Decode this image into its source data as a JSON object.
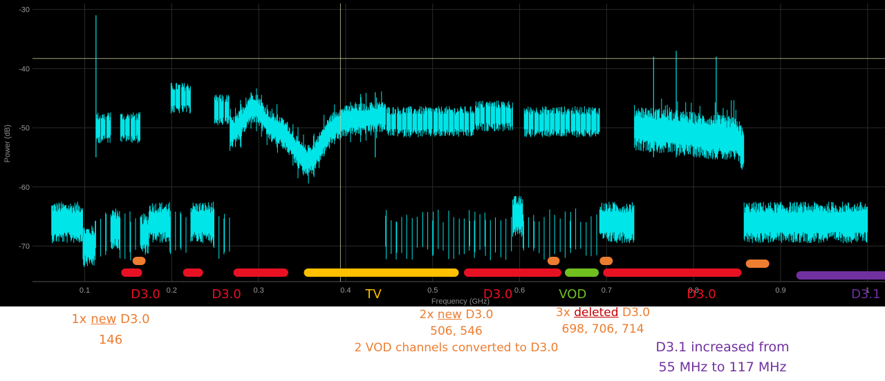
{
  "chart_data": {
    "type": "line",
    "title": "",
    "xlabel": "Frequency (GHz)",
    "ylabel": "Power (dB)",
    "xlim": [
      0.04,
      1.02
    ],
    "ylim": [
      -76,
      -29
    ],
    "grid": true,
    "x_ticks": [
      0.1,
      0.2,
      0.3,
      0.4,
      0.5,
      0.6,
      0.7,
      0.8,
      0.9,
      1
    ],
    "x_tick_labels": [
      "0.1",
      "0.2",
      "0.3",
      "0.4",
      "0.5",
      "0.6",
      "0.7",
      "0.8",
      "0.9",
      "1"
    ],
    "y_ticks": [
      -30,
      -40,
      -50,
      -60,
      -70
    ],
    "y_tick_labels": [
      "-30",
      "-40",
      "-50",
      "-60",
      "-70"
    ],
    "marker_frequency_ghz": 0.394,
    "marker_level_db": -38.3,
    "spectrum": {
      "noise_floor_db": -66,
      "segments": [
        {
          "x0": 0.062,
          "x1": 0.098,
          "level": -66,
          "kind": "floor"
        },
        {
          "x0": 0.098,
          "x1": 0.112,
          "level": -70,
          "kind": "floor"
        },
        {
          "x0": 0.112,
          "x1": 0.13,
          "level": -50,
          "kind": "carriers",
          "width": 0.006
        },
        {
          "x0": 0.13,
          "x1": 0.14,
          "level": -67,
          "kind": "floor"
        },
        {
          "x0": 0.14,
          "x1": 0.164,
          "level": -50,
          "kind": "carriers",
          "width": 0.006
        },
        {
          "x0": 0.164,
          "x1": 0.174,
          "level": -68,
          "kind": "floor"
        },
        {
          "x0": 0.174,
          "x1": 0.198,
          "level": -66,
          "kind": "floor"
        },
        {
          "x0": 0.198,
          "x1": 0.222,
          "level": -45,
          "kind": "carriers",
          "width": 0.006
        },
        {
          "x0": 0.222,
          "x1": 0.232,
          "level": -66,
          "kind": "floor"
        },
        {
          "x0": 0.232,
          "x1": 0.248,
          "level": -66,
          "kind": "floor"
        },
        {
          "x0": 0.248,
          "x1": 0.267,
          "level": -47,
          "kind": "carriers",
          "width": 0.006
        },
        {
          "x0": 0.267,
          "x1": 0.446,
          "level": -51,
          "kind": "tv",
          "width": 0.006
        },
        {
          "x0": 0.446,
          "x1": 0.548,
          "level": -49,
          "kind": "carriers",
          "width": 0.006
        },
        {
          "x0": 0.548,
          "x1": 0.592,
          "level": -48,
          "kind": "carriers",
          "width": 0.006
        },
        {
          "x0": 0.592,
          "x1": 0.604,
          "level": -65,
          "kind": "floor"
        },
        {
          "x0": 0.604,
          "x1": 0.692,
          "level": -49,
          "kind": "carriers",
          "width": 0.006
        },
        {
          "x0": 0.692,
          "x1": 0.732,
          "level": -66,
          "kind": "floor"
        },
        {
          "x0": 0.732,
          "x1": 0.85,
          "level": -50,
          "kind": "ofdm"
        },
        {
          "x0": 0.85,
          "x1": 0.858,
          "level": -52,
          "kind": "ofdm"
        },
        {
          "x0": 0.858,
          "x1": 1.0,
          "level": -66,
          "kind": "floor"
        }
      ],
      "spikes": [
        {
          "x": 0.113,
          "level": -31
        },
        {
          "x": 0.434,
          "level": -44
        },
        {
          "x": 0.754,
          "level": -38
        },
        {
          "x": 0.78,
          "level": -37
        },
        {
          "x": 0.826,
          "level": -38
        }
      ]
    },
    "bands": [
      {
        "label": "D3.0",
        "x0": 0.142,
        "x1": 0.166,
        "row": 1,
        "color": "#E81123"
      },
      {
        "label": "D3.0",
        "x0": 0.213,
        "x1": 0.236,
        "row": 1,
        "color": "#E81123"
      },
      {
        "label": "D3.0",
        "x0": 0.271,
        "x1": 0.334,
        "row": 1,
        "color": "#E81123"
      },
      {
        "label": "TV",
        "x0": 0.352,
        "x1": 0.53,
        "row": 1,
        "color": "#FFC000"
      },
      {
        "label": "D3.0",
        "x0": 0.536,
        "x1": 0.648,
        "row": 1,
        "color": "#E81123"
      },
      {
        "label": "VOD",
        "x0": 0.652,
        "x1": 0.691,
        "row": 1,
        "color": "#70C020"
      },
      {
        "label": "D3.0",
        "x0": 0.696,
        "x1": 0.855,
        "row": 1,
        "color": "#E81123"
      },
      {
        "label": "D3.1",
        "x0": 0.918,
        "x1": 1.062,
        "row": 2,
        "color": "#7030A0"
      },
      {
        "label": "new",
        "x0": 0.155,
        "x1": 0.17,
        "row": 0,
        "color": "#ED7D31"
      },
      {
        "label": "new",
        "x0": 0.632,
        "x1": 0.646,
        "row": 0,
        "color": "#ED7D31"
      },
      {
        "label": "new",
        "x0": 0.692,
        "x1": 0.707,
        "row": 0,
        "color": "#ED7D31"
      },
      {
        "label": "deleted",
        "x0": 0.86,
        "x1": 0.887,
        "row": 1.5,
        "color": "#ED7D31"
      }
    ],
    "band_labels": [
      {
        "text": "D3.0",
        "x": 0.17,
        "color": "#E81123"
      },
      {
        "text": "D3.0",
        "x": 0.263,
        "color": "#E81123"
      },
      {
        "text": "TV",
        "x": 0.432,
        "color": "#FFC000"
      },
      {
        "text": "D3.0",
        "x": 0.575,
        "color": "#E81123"
      },
      {
        "text": "VOD",
        "x": 0.661,
        "color": "#70C020"
      },
      {
        "text": "D3.0",
        "x": 0.809,
        "color": "#E81123"
      },
      {
        "text": "D3.1",
        "x": 0.998,
        "color": "#7030A0"
      }
    ]
  },
  "annotations": {
    "new_146": {
      "prefix": "1x ",
      "underlined": "new",
      "suffix": " D3.0",
      "line2": "146"
    },
    "new_506": {
      "prefix": "2x ",
      "underlined": "new",
      "suffix": " D3.0",
      "line2": "506, 546",
      "line3": "2 VOD channels converted to D3.0"
    },
    "deleted": {
      "prefix": "3x ",
      "underlined": "deleted",
      "suffix": " D3.0",
      "line2": "698, 706, 714"
    },
    "d31": {
      "line1": "D3.1 increased from",
      "line2": "55 MHz to 117 MHz"
    }
  },
  "colors": {
    "trace": "#00E5E8",
    "background": "#000000",
    "marker": "#C8C8A0"
  }
}
